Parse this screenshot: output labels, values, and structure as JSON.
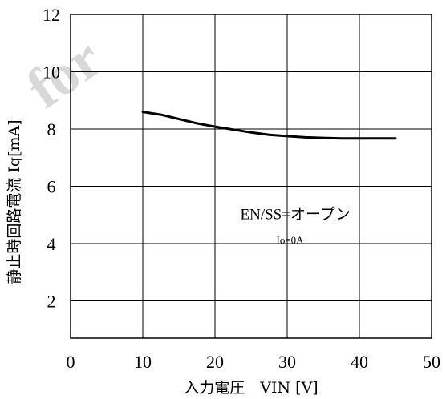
{
  "chart_data": {
    "type": "line",
    "title": "",
    "xlabel": "入力電圧　VIN [V]",
    "ylabel": "静止時回路電流 Iq[mA]",
    "xlim": [
      0,
      50
    ],
    "ylim": [
      0.7,
      12
    ],
    "x_ticks": [
      0,
      10,
      20,
      30,
      40,
      50
    ],
    "y_ticks": [
      2,
      4,
      6,
      8,
      10,
      12
    ],
    "grid": true,
    "series": [
      {
        "x": [
          10,
          12.5,
          15,
          17.5,
          20,
          22.5,
          25,
          27.5,
          30,
          32.5,
          35,
          37.5,
          40,
          42.5,
          45
        ],
        "y": [
          8.6,
          8.5,
          8.35,
          8.2,
          8.08,
          7.98,
          7.88,
          7.8,
          7.75,
          7.71,
          7.69,
          7.67,
          7.67,
          7.67,
          7.67
        ],
        "color": "#000000"
      }
    ],
    "annotations": [
      {
        "text": "EN/SS=オープン",
        "x": 23.5,
        "y": 4.85
      },
      {
        "text": "Io=0A",
        "x": 28.5,
        "y": 4.0
      }
    ]
  },
  "watermark": "for"
}
